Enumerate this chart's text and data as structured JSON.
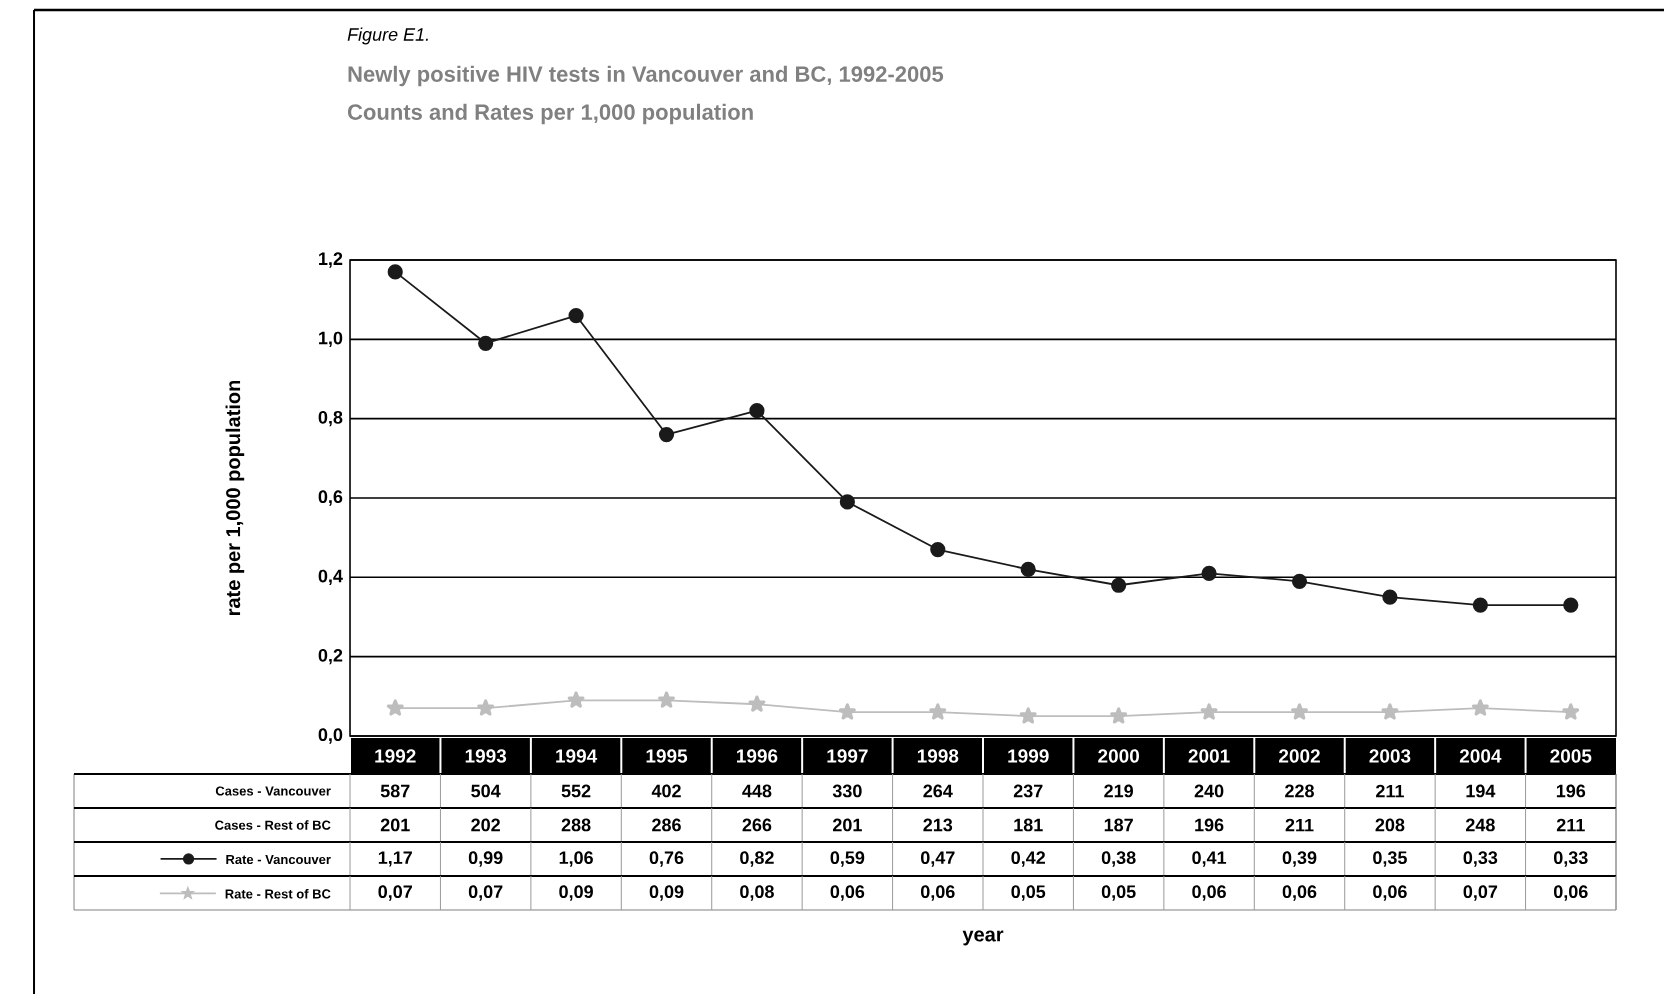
{
  "chart_data": {
    "type": "line",
    "title": "Figure E1.",
    "subtitle": "Newly positive HIV tests in Vancouver and BC, 1992-2005",
    "ylabel": "rate per 1,000 population",
    "categories": [
      "1992",
      "1993",
      "1994",
      "1995",
      "1996",
      "1997",
      "1998",
      "1999",
      "2000",
      "2001",
      "2002",
      "2003",
      "2004",
      "2005"
    ],
    "series": [
      {
        "name": "Rate - Vancouver",
        "color": "#1a1a1a",
        "marker": "circle",
        "values": [
          1.17,
          0.99,
          1.06,
          0.76,
          0.82,
          0.59,
          0.47,
          0.42,
          0.38,
          0.41,
          0.39,
          0.35,
          0.33,
          0.33
        ],
        "value_labels": [
          "1,17",
          "0,99",
          "1,06",
          "0,76",
          "0,82",
          "0,59",
          "0,47",
          "0,42",
          "0,38",
          "0,41",
          "0,39",
          "0,35",
          "0,33",
          "0,33"
        ]
      },
      {
        "name": "Rate - Rest of BC",
        "color": "#bdbdbd",
        "marker": "star",
        "values": [
          0.07,
          0.07,
          0.09,
          0.09,
          0.08,
          0.06,
          0.06,
          0.05,
          0.05,
          0.06,
          0.06,
          0.06,
          0.07,
          0.06
        ],
        "value_labels": [
          "0,07",
          "0,07",
          "0,09",
          "0,09",
          "0,08",
          "0,06",
          "0,06",
          "0,05",
          "0,05",
          "0,06",
          "0,06",
          "0,06",
          "0,07",
          "0,06"
        ]
      }
    ],
    "ylim": [
      0,
      1.2
    ],
    "yticks": [
      {
        "value": 0,
        "label": "0,0"
      },
      {
        "value": 0.2,
        "label": "0,2"
      },
      {
        "value": 0.4,
        "label": "0,4"
      },
      {
        "value": 0.6,
        "label": "0,6"
      },
      {
        "value": 0.8,
        "label": "0,8"
      },
      {
        "value": 1.0,
        "label": "1,0"
      },
      {
        "value": 1.2,
        "label": "1,2"
      }
    ],
    "grid": "y",
    "legend": "bottom",
    "annotations": [
      "Counts and Rates per 1,000 population",
      "Cases - Vancouver",
      "587",
      "504",
      "552",
      "402",
      "448",
      "330",
      "264",
      "237",
      "219",
      "240",
      "228",
      "211",
      "194",
      "196",
      "Cases - Rest of BC",
      "201",
      "202",
      "288",
      "286",
      "266",
      "201",
      "213",
      "181",
      "187",
      "196",
      "211",
      "208",
      "248",
      "211",
      "year"
    ]
  }
}
